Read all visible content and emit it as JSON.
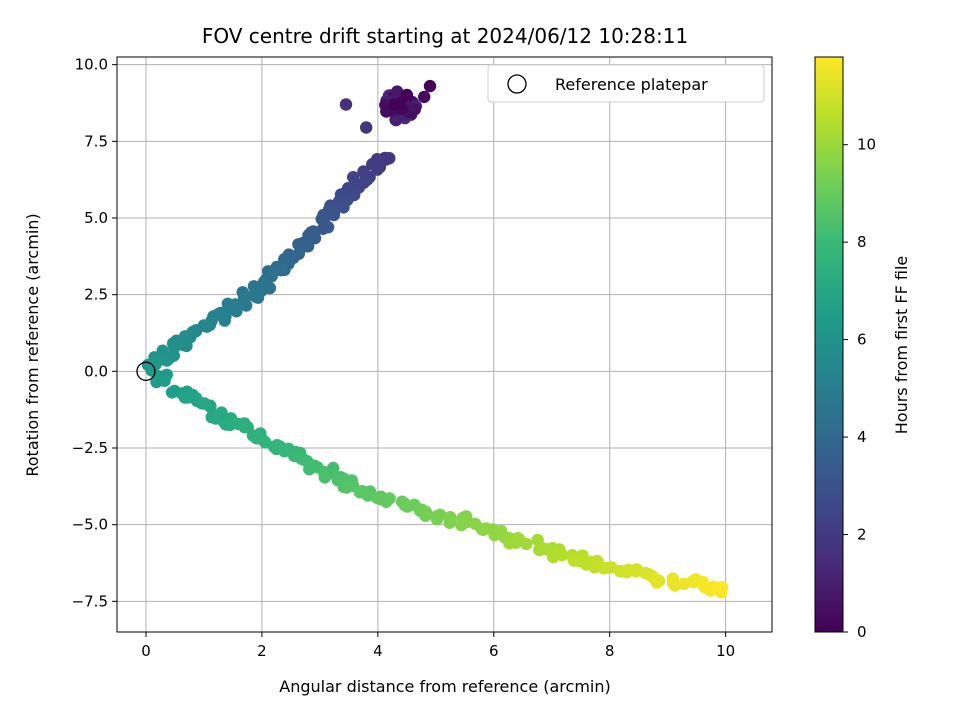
{
  "chart_data": {
    "type": "scatter",
    "title": "FOV centre drift starting at 2024/06/12 10:28:11",
    "xlabel": "Angular distance from reference (arcmin)",
    "ylabel": "Rotation from reference (arcmin)",
    "xlim": [
      -0.5,
      10.8
    ],
    "ylim": [
      -8.5,
      10.25
    ],
    "xticks": [
      0,
      2,
      4,
      6,
      8,
      10
    ],
    "yticks": [
      -7.5,
      -5.0,
      -2.5,
      0.0,
      2.5,
      5.0,
      7.5,
      10.0
    ],
    "grid": true,
    "legend": {
      "placement": "top-right",
      "entries": [
        "Reference platepar"
      ]
    },
    "reference_point": {
      "x": 0,
      "y": 0
    },
    "colorbar": {
      "label": "Hours from first FF file",
      "colormap": "viridis",
      "range": [
        0,
        11.8
      ],
      "ticks": [
        0,
        2,
        4,
        6,
        8,
        10
      ]
    },
    "colormap_stops": [
      "#440154",
      "#482878",
      "#3e4989",
      "#31688e",
      "#26828e",
      "#1f9e89",
      "#35b779",
      "#6ece58",
      "#b5de2b",
      "#fde725"
    ],
    "segments": [
      {
        "name": "cluster",
        "t": [
          0.0,
          1.3
        ],
        "center": [
          4.4,
          8.6
        ],
        "spread": [
          0.22,
          0.4
        ],
        "n": 55
      },
      {
        "name": "outliers",
        "points": [
          [
            3.45,
            8.7,
            1.6
          ],
          [
            3.8,
            7.95,
            1.8
          ],
          [
            4.9,
            9.3,
            0.1
          ],
          [
            4.8,
            8.95,
            0.3
          ]
        ]
      },
      {
        "name": "upper-arm",
        "t": [
          1.8,
          6.3
        ],
        "path": [
          [
            4.2,
            7.1
          ],
          [
            3.7,
            6.2
          ],
          [
            3.3,
            5.3
          ],
          [
            2.8,
            4.3
          ],
          [
            2.3,
            3.3
          ],
          [
            1.7,
            2.3
          ],
          [
            1.1,
            1.6
          ],
          [
            0.6,
            0.9
          ],
          [
            0.1,
            0.1
          ]
        ],
        "jitter": [
          0.15,
          0.15
        ],
        "n": 120
      },
      {
        "name": "lower-arm",
        "t": [
          6.3,
          11.8
        ],
        "path": [
          [
            0.1,
            -0.1
          ],
          [
            0.5,
            -0.5
          ],
          [
            1.0,
            -1.1
          ],
          [
            2.0,
            -2.2
          ],
          [
            3.0,
            -3.2
          ],
          [
            4.0,
            -4.1
          ],
          [
            5.0,
            -4.7
          ],
          [
            6.0,
            -5.2
          ],
          [
            7.0,
            -5.9
          ],
          [
            8.0,
            -6.4
          ],
          [
            9.0,
            -6.8
          ],
          [
            10.0,
            -7.1
          ]
        ],
        "jitter": [
          0.15,
          0.15
        ],
        "n": 165
      }
    ]
  }
}
